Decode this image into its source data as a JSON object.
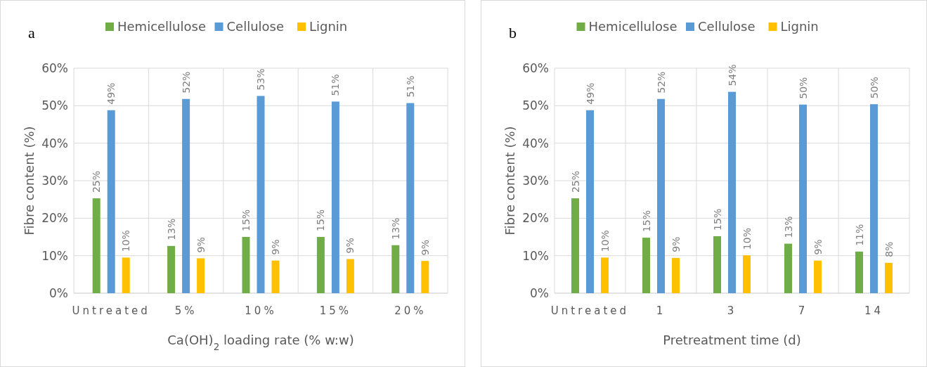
{
  "chart_data": [
    {
      "type": "bar",
      "annotations": [
        "a"
      ],
      "categories": [
        "Untreated",
        "5%",
        "10%",
        "15%",
        "20%"
      ],
      "xlabel": "Ca(OH)$_{2}$ loading rate (% w:w)",
      "ylabel": "Fibre content (%)",
      "ylim": [
        0,
        60
      ],
      "yticks": [
        {
          "value": 0,
          "label": "0%"
        },
        {
          "value": 10,
          "label": "10%"
        },
        {
          "value": 20,
          "label": "20%"
        },
        {
          "value": 30,
          "label": "30%"
        },
        {
          "value": 40,
          "label": "40%"
        },
        {
          "value": 50,
          "label": "50%"
        },
        {
          "value": 60,
          "label": "60%"
        }
      ],
      "grid": true,
      "legend": "top",
      "series": [
        {
          "name": "Hemicellulose",
          "color": "#70ad47",
          "values": [
            25.3,
            12.6,
            15,
            15,
            12.8
          ],
          "value_labels": [
            "25%",
            "13%",
            "15%",
            "15%",
            "13%"
          ]
        },
        {
          "name": "Cellulose",
          "color": "#5b9bd5",
          "values": [
            48.8,
            51.8,
            52.6,
            51.1,
            50.7
          ],
          "value_labels": [
            "49%",
            "52%",
            "53%",
            "51%",
            "51%"
          ]
        },
        {
          "name": "Lignin",
          "color": "#ffc000",
          "values": [
            9.5,
            9.3,
            8.7,
            9.1,
            8.6
          ],
          "value_labels": [
            "10%",
            "9%",
            "9%",
            "9%",
            "9%"
          ]
        }
      ]
    },
    {
      "type": "bar",
      "annotations": [
        "b"
      ],
      "categories": [
        "Untreated",
        "1",
        "3",
        "7",
        "14"
      ],
      "xlabel": "Pretreatment time (d)",
      "ylabel": "Fibre content (%)",
      "ylim": [
        0,
        60
      ],
      "yticks": [
        {
          "value": 0,
          "label": "0%"
        },
        {
          "value": 10,
          "label": "10%"
        },
        {
          "value": 20,
          "label": "20%"
        },
        {
          "value": 30,
          "label": "30%"
        },
        {
          "value": 40,
          "label": "40%"
        },
        {
          "value": 50,
          "label": "50%"
        },
        {
          "value": 60,
          "label": "60%"
        }
      ],
      "grid": true,
      "legend": "top",
      "series": [
        {
          "name": "Hemicellulose",
          "color": "#70ad47",
          "values": [
            25.3,
            14.8,
            15.2,
            13.2,
            11.1
          ],
          "value_labels": [
            "25%",
            "15%",
            "15%",
            "13%",
            "11%"
          ]
        },
        {
          "name": "Cellulose",
          "color": "#5b9bd5",
          "values": [
            48.8,
            51.8,
            53.7,
            50.3,
            50.4
          ],
          "value_labels": [
            "49%",
            "52%",
            "54%",
            "50%",
            "50%"
          ]
        },
        {
          "name": "Lignin",
          "color": "#ffc000",
          "values": [
            9.5,
            9.4,
            10.1,
            8.7,
            8.1
          ],
          "value_labels": [
            "10%",
            "9%",
            "10%",
            "9%",
            "8%"
          ]
        }
      ]
    }
  ]
}
